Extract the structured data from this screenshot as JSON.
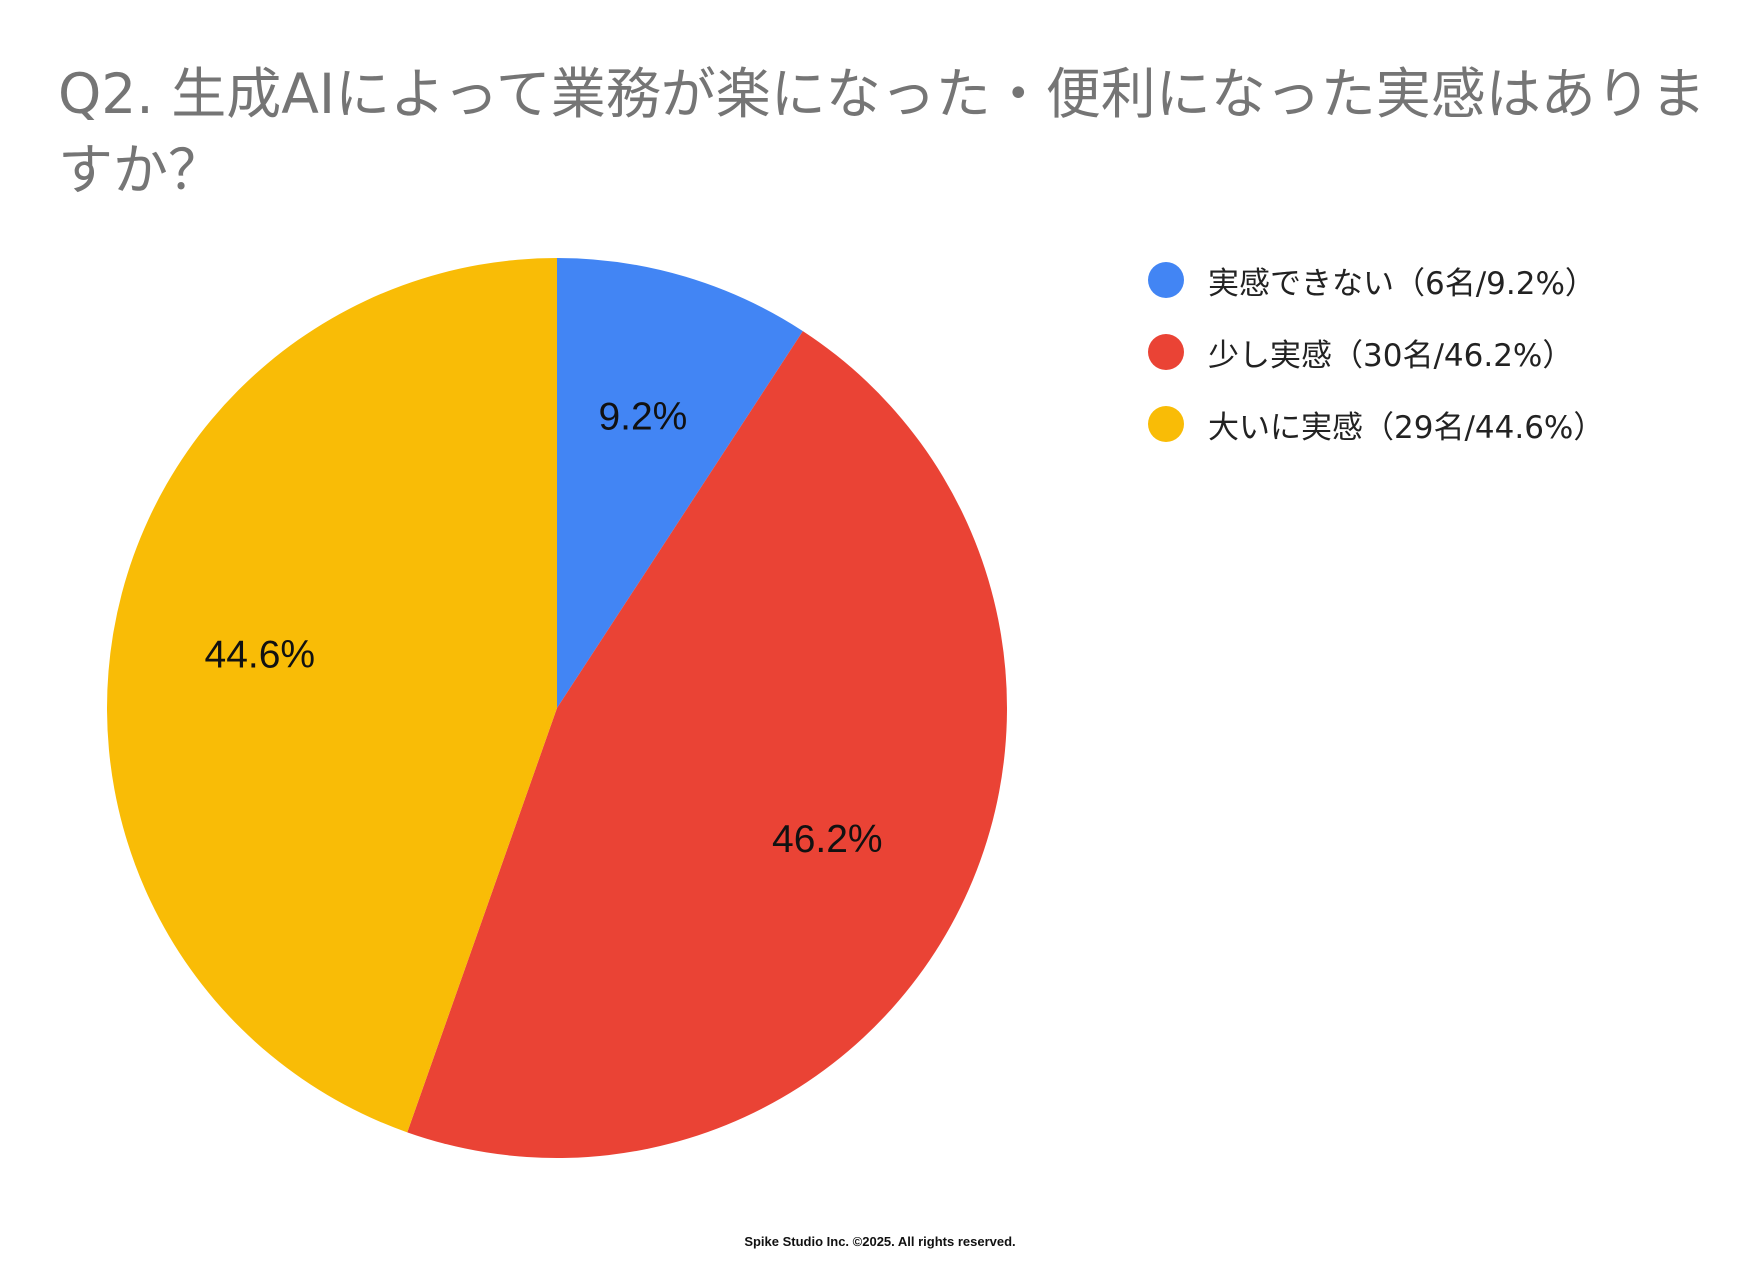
{
  "chart_data": {
    "type": "pie",
    "title": "Q2. 生成AIによって業務が楽になった・便利になった実感はありますか？",
    "slices": [
      {
        "label": "実感できない（6名/9.2%）",
        "value": 9.2,
        "data_label": "9.2%",
        "color": "#4285F4"
      },
      {
        "label": "少し実感（30名/46.2%）",
        "value": 46.2,
        "data_label": "46.2%",
        "color": "#EA4335"
      },
      {
        "label": "大いに実感（29名/44.6%）",
        "value": 44.6,
        "data_label": "44.6%",
        "color": "#F9BC06"
      }
    ],
    "legend_position": "top-right"
  },
  "footer": "Spike Studio Inc. ©2025. All rights reserved."
}
